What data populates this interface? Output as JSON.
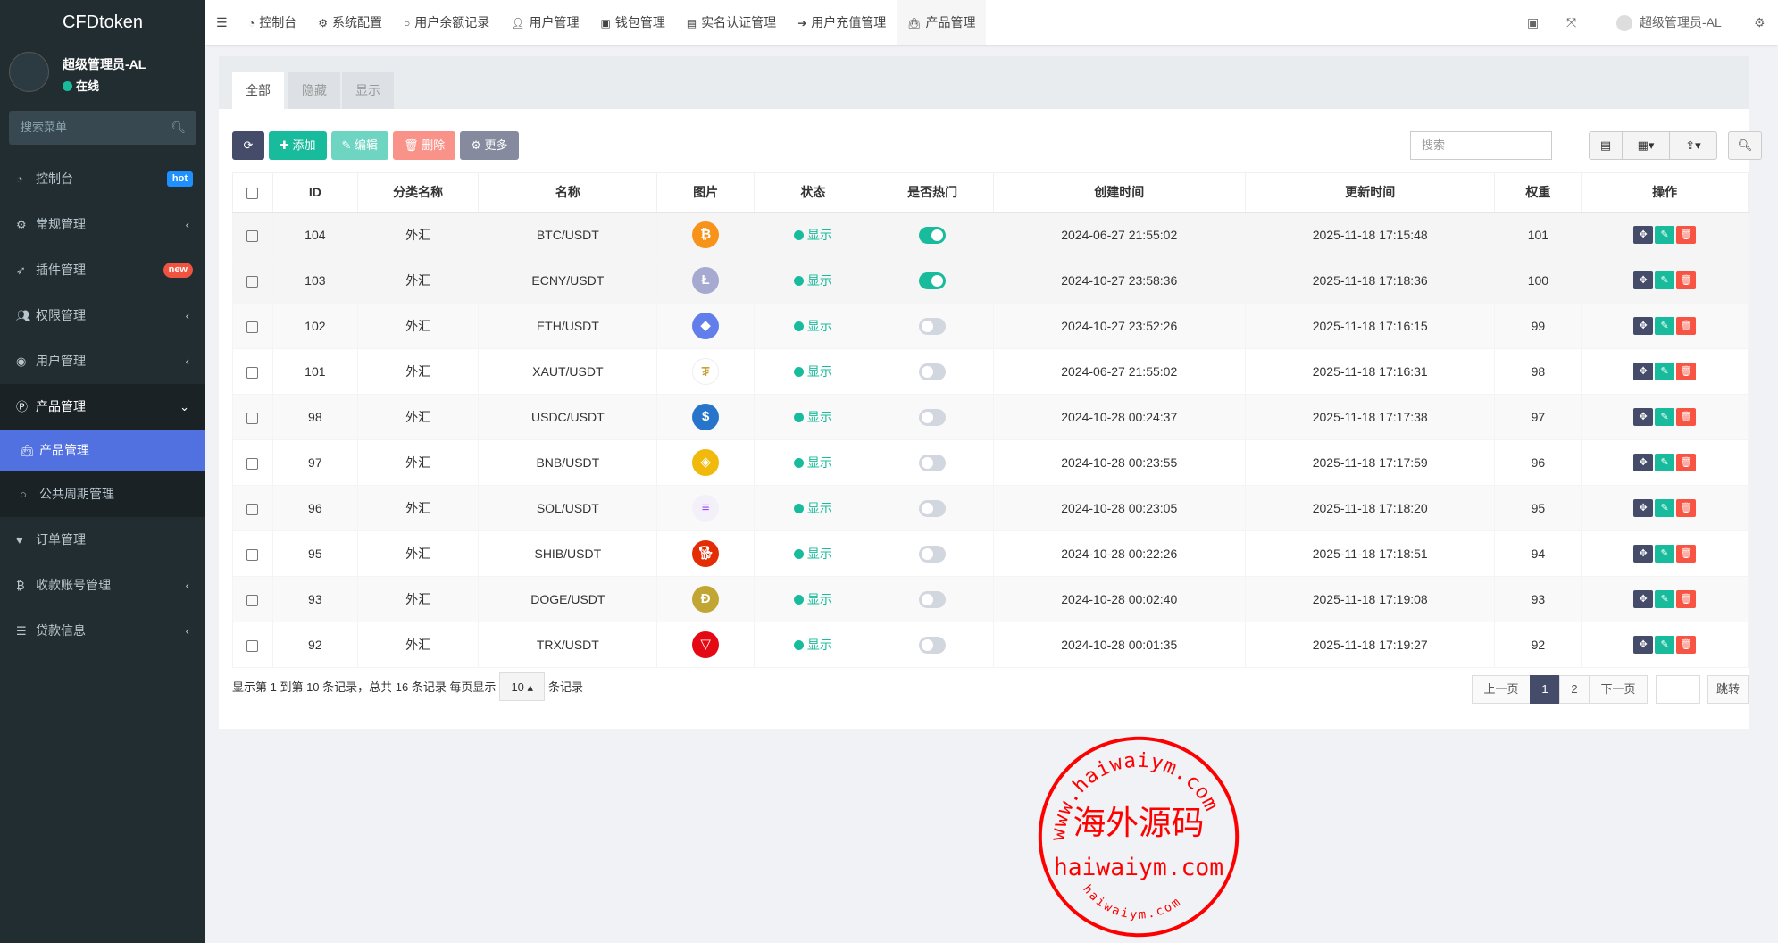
{
  "app": {
    "title": "CFDtoken"
  },
  "user": {
    "name": "超级管理员-AL",
    "status": "在线"
  },
  "sidebar": {
    "search_placeholder": "搜索菜单",
    "items": [
      {
        "label": "控制台",
        "icon": "dashboard-icon",
        "badge": "hot",
        "badge_color": "#1e90ff"
      },
      {
        "label": "常规管理",
        "icon": "cogs-icon",
        "arrow": "‹"
      },
      {
        "label": "插件管理",
        "icon": "rocket-icon",
        "badge": "new",
        "badge_color": "#f0533f"
      },
      {
        "label": "权限管理",
        "icon": "group-icon",
        "arrow": "‹"
      },
      {
        "label": "用户管理",
        "icon": "user-circle-icon",
        "arrow": "‹"
      },
      {
        "label": "产品管理",
        "icon": "product-p-icon",
        "arrow": "⌄",
        "children": [
          {
            "label": "产品管理",
            "icon": "shopping-bag-icon"
          },
          {
            "label": "公共周期管理",
            "icon": "circle-icon"
          }
        ]
      },
      {
        "label": "订单管理",
        "icon": "heartbeat-icon"
      },
      {
        "label": "收款账号管理",
        "icon": "bitcoin-icon",
        "arrow": "‹"
      },
      {
        "label": "贷款信息",
        "icon": "list-icon",
        "arrow": "‹"
      }
    ]
  },
  "header": {
    "tabs": [
      {
        "label": "控制台",
        "icon": "dashboard-icon"
      },
      {
        "label": "系统配置",
        "icon": "gear-icon"
      },
      {
        "label": "用户余额记录",
        "icon": "circle-icon"
      },
      {
        "label": "用户管理",
        "icon": "user-icon"
      },
      {
        "label": "钱包管理",
        "icon": "wallet-icon"
      },
      {
        "label": "实名认证管理",
        "icon": "id-card-icon"
      },
      {
        "label": "用户充值管理",
        "icon": "sign-in-icon"
      },
      {
        "label": "产品管理",
        "icon": "shopping-bag-icon"
      }
    ],
    "user": "超级管理员-AL"
  },
  "filter_tabs": [
    "全部",
    "隐藏",
    "显示"
  ],
  "toolbar": {
    "add": "添加",
    "edit": "编辑",
    "delete": "删除",
    "more": "更多",
    "search_placeholder": "搜索"
  },
  "table": {
    "columns": [
      "ID",
      "分类名称",
      "名称",
      "图片",
      "状态",
      "是否热门",
      "创建时间",
      "更新时间",
      "权重",
      "操作"
    ],
    "rows": [
      {
        "id": "104",
        "category": "外汇",
        "name": "BTC/USDT",
        "coin": "btc",
        "status": "显示",
        "hot": true,
        "created": "2024-06-27 21:55:02",
        "updated": "2025-11-18 17:15:48",
        "weight": "101"
      },
      {
        "id": "103",
        "category": "外汇",
        "name": "ECNY/USDT",
        "coin": "ltc",
        "status": "显示",
        "hot": true,
        "created": "2024-10-27 23:58:36",
        "updated": "2025-11-18 17:18:36",
        "weight": "100"
      },
      {
        "id": "102",
        "category": "外汇",
        "name": "ETH/USDT",
        "coin": "eth",
        "status": "显示",
        "hot": false,
        "created": "2024-10-27 23:52:26",
        "updated": "2025-11-18 17:16:15",
        "weight": "99"
      },
      {
        "id": "101",
        "category": "外汇",
        "name": "XAUT/USDT",
        "coin": "xaut",
        "status": "显示",
        "hot": false,
        "created": "2024-06-27 21:55:02",
        "updated": "2025-11-18 17:16:31",
        "weight": "98"
      },
      {
        "id": "98",
        "category": "外汇",
        "name": "USDC/USDT",
        "coin": "usdc",
        "status": "显示",
        "hot": false,
        "created": "2024-10-28 00:24:37",
        "updated": "2025-11-18 17:17:38",
        "weight": "97"
      },
      {
        "id": "97",
        "category": "外汇",
        "name": "BNB/USDT",
        "coin": "bnb",
        "status": "显示",
        "hot": false,
        "created": "2024-10-28 00:23:55",
        "updated": "2025-11-18 17:17:59",
        "weight": "96"
      },
      {
        "id": "96",
        "category": "外汇",
        "name": "SOL/USDT",
        "coin": "sol",
        "status": "显示",
        "hot": false,
        "created": "2024-10-28 00:23:05",
        "updated": "2025-11-18 17:18:20",
        "weight": "95"
      },
      {
        "id": "95",
        "category": "外汇",
        "name": "SHIB/USDT",
        "coin": "shib",
        "status": "显示",
        "hot": false,
        "created": "2024-10-28 00:22:26",
        "updated": "2025-11-18 17:18:51",
        "weight": "94"
      },
      {
        "id": "93",
        "category": "外汇",
        "name": "DOGE/USDT",
        "coin": "doge",
        "status": "显示",
        "hot": false,
        "created": "2024-10-28 00:02:40",
        "updated": "2025-11-18 17:19:08",
        "weight": "93"
      },
      {
        "id": "92",
        "category": "外汇",
        "name": "TRX/USDT",
        "coin": "trx",
        "status": "显示",
        "hot": false,
        "created": "2024-10-28 00:01:35",
        "updated": "2025-11-18 17:19:27",
        "weight": "92"
      }
    ]
  },
  "footer": {
    "summary": "显示第 1 到第 10 条记录，总共 16 条记录 每页显示",
    "page_size": "10",
    "suffix": "条记录"
  },
  "pagination": {
    "prev": "上一页",
    "pages": [
      "1",
      "2"
    ],
    "current": "1",
    "next": "下一页",
    "jump": "跳转"
  },
  "watermark": {
    "top": "www.haiwaiym.com",
    "center": "海外源码",
    "middle": "haiwaiym.com",
    "bottom": "haiwaiym.com"
  },
  "colors": {
    "primary": "#444c69",
    "success": "#18bc9c",
    "danger": "#f75444",
    "sidebar": "#222d32",
    "active": "#5071df"
  }
}
